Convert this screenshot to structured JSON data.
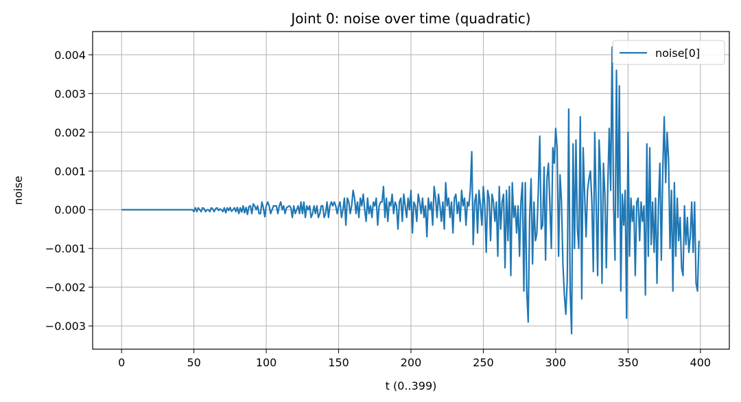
{
  "chart_data": {
    "type": "line",
    "title": "Joint 0: noise over time (quadratic)",
    "xlabel": "t (0..399)",
    "ylabel": "noise",
    "xlim": [
      -20,
      420
    ],
    "ylim": [
      -0.0036,
      0.0046
    ],
    "x_ticks": [
      0,
      50,
      100,
      150,
      200,
      250,
      300,
      350,
      400
    ],
    "x_tick_labels": [
      "0",
      "50",
      "100",
      "150",
      "200",
      "250",
      "300",
      "350",
      "400"
    ],
    "y_ticks": [
      -0.003,
      -0.002,
      -0.001,
      0.0,
      0.001,
      0.002,
      0.003,
      0.004
    ],
    "y_tick_labels": [
      "−0.003",
      "−0.002",
      "−0.001",
      "0.000",
      "0.001",
      "0.002",
      "0.003",
      "0.004"
    ],
    "grid": true,
    "legend": {
      "position": "top-right",
      "entries": [
        "noise[0]"
      ]
    },
    "series": [
      {
        "name": "noise[0]",
        "color": "#1f77b4",
        "x_start": 0,
        "x_step": 1,
        "values": [
          0.0,
          0.0,
          0.0,
          0.0,
          0.0,
          0.0,
          0.0,
          0.0,
          0.0,
          0.0,
          0.0,
          0.0,
          0.0,
          0.0,
          0.0,
          0.0,
          0.0,
          0.0,
          0.0,
          0.0,
          0.0,
          0.0,
          0.0,
          0.0,
          0.0,
          0.0,
          0.0,
          0.0,
          0.0,
          0.0,
          0.0,
          0.0,
          0.0,
          0.0,
          0.0,
          0.0,
          0.0,
          0.0,
          0.0,
          0.0,
          0.0,
          0.0,
          0.0,
          0.0,
          0.0,
          0.0,
          0.0,
          0.0,
          0.0,
          0.0,
          -5e-05,
          5e-05,
          -5e-05,
          5e-05,
          0.0,
          -5e-05,
          5e-05,
          3e-05,
          -5e-05,
          0.0,
          0.0,
          -5e-05,
          5e-05,
          2e-05,
          -5e-05,
          3e-05,
          5e-05,
          -2e-05,
          2e-05,
          0.0,
          -5e-05,
          5e-05,
          -8e-05,
          5e-05,
          -2e-05,
          6e-05,
          -4e-05,
          0.0,
          5e-05,
          -5e-05,
          6e-05,
          -0.0001,
          5e-05,
          -6e-05,
          0.0001,
          -8e-05,
          6e-05,
          -0.00012,
          8e-05,
          0.0001,
          -0.0001,
          0.00015,
          0.0001,
          0.0,
          0.0001,
          -0.0001,
          -0.0001,
          0.0002,
          5e-05,
          -0.00018,
          0.0001,
          0.0002,
          0.0001,
          -0.0001,
          0.0,
          0.0001,
          0.0001,
          0.0001,
          -0.0001,
          0.0001,
          0.0002,
          0.0,
          0.0001,
          -0.0001,
          5e-05,
          8e-05,
          0.0001,
          5e-05,
          -0.0002,
          0.0001,
          -0.0001,
          0.0,
          0.0001,
          -0.0001,
          0.0002,
          -0.0001,
          0.0002,
          -0.0002,
          0.0001,
          0.0,
          0.0001,
          -0.0002,
          -0.0001,
          0.0001,
          -0.0001,
          0.0001,
          -0.0002,
          -0.0001,
          0.0001,
          0.0001,
          -0.0002,
          -0.0001,
          0.0002,
          -0.0002,
          0.0001,
          0.0002,
          0.0001,
          0.0002,
          0.0001,
          -0.0001,
          0.0001,
          0.0002,
          -0.0002,
          0.0,
          0.0003,
          -0.0004,
          0.0003,
          0.0002,
          -0.0001,
          0.0001,
          0.0005,
          0.0003,
          -0.0001,
          0.0002,
          -0.0002,
          0.0003,
          0.0001,
          0.0004,
          0.0,
          -0.0003,
          0.0003,
          -0.0001,
          0.0001,
          -0.0002,
          0.0002,
          0.0001,
          0.0003,
          -0.0004,
          0.0001,
          0.0002,
          0.0002,
          0.0006,
          -0.0002,
          0.0003,
          -0.0003,
          0.0002,
          0.0001,
          0.0004,
          -0.0001,
          0.0002,
          0.0001,
          -0.0005,
          0.0002,
          0.0003,
          -0.0003,
          0.0004,
          0.0001,
          -0.0002,
          0.0003,
          0.0,
          0.0005,
          -0.0006,
          0.0002,
          0.0001,
          -0.0003,
          0.0004,
          0.0002,
          -0.0001,
          0.0003,
          -0.0002,
          0.0001,
          -0.0007,
          0.0003,
          0.0,
          0.0002,
          -0.0004,
          0.0006,
          0.0003,
          -0.0002,
          0.0004,
          0.0001,
          -0.0003,
          0.0002,
          -0.0005,
          0.0007,
          0.0001,
          0.0003,
          -0.0002,
          0.0002,
          -0.0006,
          0.0003,
          0.0004,
          -0.0001,
          0.0002,
          -0.0003,
          0.0005,
          0.0001,
          0.0003,
          -0.0004,
          0.0002,
          0.0001,
          0.0005,
          0.0015,
          -0.0009,
          0.0002,
          0.0004,
          -0.0006,
          0.0005,
          0.0001,
          -0.0004,
          0.0006,
          0.0001,
          -0.0011,
          0.0005,
          0.0003,
          -0.0008,
          0.0004,
          0.0002,
          -0.0003,
          0.0002,
          -0.0012,
          0.0006,
          -0.0005,
          0.0002,
          0.0004,
          -0.0015,
          0.0005,
          -0.0008,
          0.0006,
          -0.0017,
          0.0007,
          -0.0002,
          0.0001,
          -0.0006,
          0.0001,
          -0.0012,
          0.0002,
          0.0007,
          -0.0021,
          0.0007,
          -0.0021,
          -0.0029,
          -0.0002,
          0.0008,
          -0.0014,
          0.0002,
          -0.0008,
          -0.0006,
          0.0005,
          0.0019,
          -0.0005,
          -0.0004,
          0.0011,
          -0.0013,
          0.0008,
          0.0012,
          0.0001,
          -0.001,
          0.0016,
          0.0012,
          0.0021,
          0.0016,
          -0.0012,
          0.0009,
          0.0002,
          -0.0014,
          -0.0022,
          -0.0027,
          -0.0018,
          0.0026,
          -0.0021,
          -0.0032,
          0.0017,
          -0.001,
          0.0018,
          -0.0005,
          -0.001,
          0.0024,
          -0.0023,
          0.0016,
          0.0004,
          -0.0007,
          0.0005,
          0.0008,
          0.001,
          0.0002,
          -0.0016,
          0.002,
          0.0001,
          -0.0017,
          0.0018,
          0.0009,
          -0.0019,
          0.0012,
          0.0004,
          -0.0015,
          0.0006,
          0.0021,
          0.0005,
          0.0042,
          0.0001,
          -0.0013,
          0.0036,
          -0.0002,
          0.0032,
          -0.0021,
          0.0004,
          -0.0004,
          0.0005,
          -0.0028,
          0.002,
          -0.0012,
          0.0003,
          -0.0003,
          0.0001,
          -0.0017,
          0.0002,
          0.0003,
          -0.0008,
          0.0002,
          -0.0003,
          0.0001,
          -0.0022,
          0.0017,
          -0.0012,
          0.0016,
          -0.0009,
          0.0002,
          -0.0011,
          0.0003,
          -0.0019,
          0.0001,
          0.0012,
          -0.0013,
          0.001,
          0.0024,
          0.0007,
          0.002,
          0.0013,
          -0.001,
          0.0005,
          -0.0021,
          0.0007,
          -0.0012,
          0.0003,
          -0.0008,
          -0.0002,
          -0.0015,
          -0.0017,
          0.0001,
          -0.0009,
          -0.0002,
          -0.0011,
          -0.0007,
          0.0002,
          -0.0011,
          0.0002,
          -0.0019,
          -0.0021,
          -0.0008
        ]
      }
    ]
  }
}
